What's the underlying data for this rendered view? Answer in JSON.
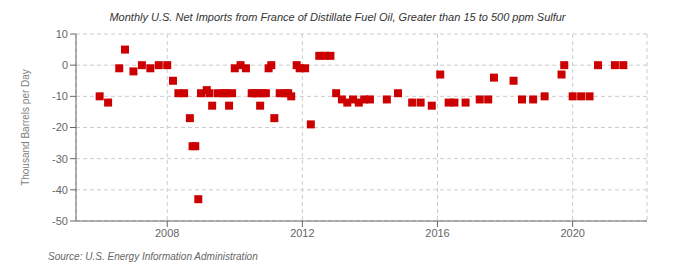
{
  "chart_data": {
    "type": "scatter",
    "title": "Monthly U.S. Net Imports from France of Distillate Fuel Oil, Greater than 15 to 500 ppm Sulfur",
    "y_label": "Thousand Barrels per Day",
    "annotations": [
      "Source: U.S. Energy Information Administration"
    ],
    "color": "#cc0000",
    "marker": "square",
    "grid": true,
    "xlim": [
      2005.3,
      2022.2
    ],
    "xticks": [
      2008,
      2012,
      2016,
      2020
    ],
    "ylim": [
      -50,
      10
    ],
    "yticks": [
      -50,
      -40,
      -30,
      -20,
      -10,
      0,
      10
    ],
    "x": [
      2006.0,
      2006.25,
      2006.58,
      2006.75,
      2007.0,
      2007.25,
      2007.5,
      2007.75,
      2008.0,
      2008.17,
      2008.33,
      2008.5,
      2008.67,
      2008.75,
      2008.83,
      2008.92,
      2009.0,
      2009.17,
      2009.25,
      2009.33,
      2009.5,
      2009.67,
      2009.75,
      2009.83,
      2009.92,
      2010.0,
      2010.17,
      2010.33,
      2010.5,
      2010.58,
      2010.67,
      2010.75,
      2010.83,
      2010.92,
      2011.0,
      2011.08,
      2011.17,
      2011.33,
      2011.5,
      2011.58,
      2011.67,
      2011.83,
      2011.92,
      2012.08,
      2012.25,
      2012.5,
      2012.67,
      2012.83,
      2013.0,
      2013.17,
      2013.33,
      2013.5,
      2013.67,
      2013.83,
      2014.0,
      2014.5,
      2014.83,
      2015.25,
      2015.5,
      2015.83,
      2016.08,
      2016.33,
      2016.5,
      2016.83,
      2017.25,
      2017.5,
      2017.67,
      2018.25,
      2018.5,
      2018.83,
      2019.17,
      2019.67,
      2019.75,
      2020.0,
      2020.25,
      2020.5,
      2020.75,
      2021.25,
      2021.5
    ],
    "values": [
      -10.0,
      -12.0,
      -1.0,
      5.0,
      -2.0,
      0.0,
      -1.0,
      0.0,
      0.0,
      -5.0,
      -9.0,
      -9.0,
      -17.0,
      -26.0,
      -26.0,
      -43.0,
      -9.0,
      -8.0,
      -9.0,
      -13.0,
      -9.0,
      -9.0,
      -9.0,
      -13.0,
      -9.0,
      -1.0,
      0.0,
      -1.0,
      -9.0,
      -9.0,
      -9.0,
      -13.0,
      -9.0,
      -9.0,
      -1.0,
      0.0,
      -17.0,
      -9.0,
      -9.0,
      -9.0,
      -10.0,
      0.0,
      -1.0,
      -1.0,
      -19.0,
      3.0,
      3.0,
      3.0,
      -9.0,
      -11.0,
      -12.0,
      -11.0,
      -12.0,
      -11.0,
      -11.0,
      -11.0,
      -9.0,
      -12.0,
      -12.0,
      -13.0,
      -3.0,
      -12.0,
      -12.0,
      -12.0,
      -11.0,
      -11.0,
      -4.0,
      -5.0,
      -11.0,
      -11.0,
      -10.0,
      -3.0,
      0.0,
      -10.0,
      -10.0,
      -10.0,
      0.0,
      0.0,
      0.0
    ]
  }
}
